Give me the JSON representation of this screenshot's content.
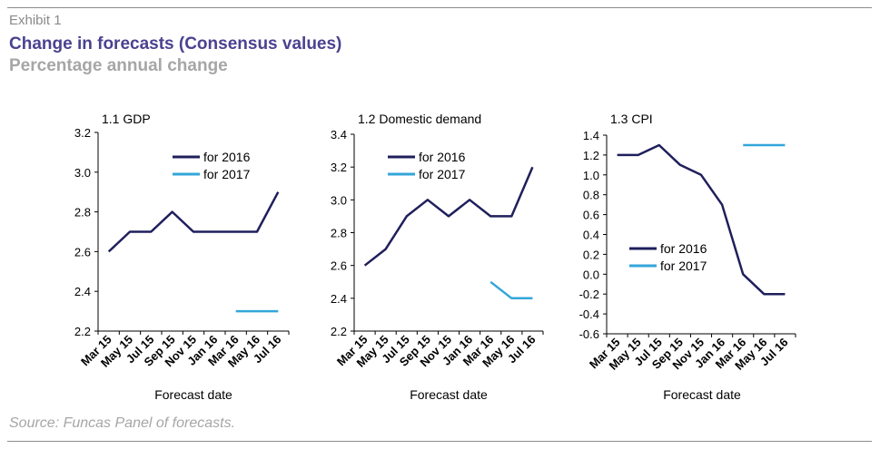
{
  "header": {
    "exhibit": "Exhibit 1",
    "title": "Change in forecasts (Consensus values)",
    "subtitle": "Percentage annual change"
  },
  "footer": {
    "source": "Source: Funcas Panel of forecasts."
  },
  "colors": {
    "for_2016": "#1f1f5c",
    "for_2017": "#33a6d9"
  },
  "chart_data": [
    {
      "type": "line",
      "title": "1.1 GDP",
      "xlabel": "Forecast date",
      "ylabel": "",
      "categories": [
        "Mar 15",
        "May 15",
        "Jul 15",
        "Sep 15",
        "Nov 15",
        "Jan 16",
        "Mar 16",
        "May 16",
        "Jul 16"
      ],
      "ylim": [
        2.2,
        3.2
      ],
      "yticks": [
        "2.2",
        "2.4",
        "2.6",
        "2.8",
        "3.0",
        "3.2"
      ],
      "legend_position": "top-right",
      "grid": false,
      "series": [
        {
          "name": "for 2016",
          "values": [
            2.6,
            2.7,
            2.7,
            2.8,
            2.7,
            2.7,
            2.7,
            2.7,
            2.9
          ]
        },
        {
          "name": "for 2017",
          "values": [
            null,
            null,
            null,
            null,
            null,
            null,
            2.3,
            2.3,
            2.3
          ]
        }
      ]
    },
    {
      "type": "line",
      "title": "1.2 Domestic demand",
      "xlabel": "Forecast date",
      "ylabel": "",
      "categories": [
        "Mar 15",
        "May 15",
        "Jul 15",
        "Sep 15",
        "Nov 15",
        "Jan 16",
        "Mar 16",
        "May 16",
        "Jul 16"
      ],
      "ylim": [
        2.2,
        3.4
      ],
      "yticks": [
        "2.2",
        "2.4",
        "2.6",
        "2.8",
        "3.0",
        "3.2",
        "3.4"
      ],
      "legend_position": "top-left",
      "grid": false,
      "series": [
        {
          "name": "for 2016",
          "values": [
            2.6,
            2.7,
            2.9,
            3.0,
            2.9,
            3.0,
            2.9,
            2.9,
            3.2
          ]
        },
        {
          "name": "for 2017",
          "values": [
            null,
            null,
            null,
            null,
            null,
            null,
            2.5,
            2.4,
            2.4
          ]
        }
      ]
    },
    {
      "type": "line",
      "title": "1.3 CPI",
      "xlabel": "Forecast date",
      "ylabel": "",
      "categories": [
        "Mar 15",
        "May 15",
        "Jul 15",
        "Sep 15",
        "Nov 15",
        "Jan 16",
        "Mar 16",
        "May 16",
        "Jul 16"
      ],
      "ylim": [
        -0.6,
        1.4
      ],
      "yticks": [
        "-0.6",
        "-0.4",
        "-0.2",
        "0.0",
        "0.2",
        "0.4",
        "0.6",
        "0.8",
        "1.0",
        "1.2",
        "1.4"
      ],
      "legend_position": "bottom-left",
      "grid": false,
      "series": [
        {
          "name": "for 2016",
          "values": [
            1.2,
            1.2,
            1.3,
            1.1,
            1.0,
            0.7,
            0.0,
            -0.2,
            -0.2
          ]
        },
        {
          "name": "for 2017",
          "values": [
            null,
            null,
            null,
            null,
            null,
            null,
            1.3,
            1.3,
            1.3
          ]
        }
      ]
    }
  ]
}
